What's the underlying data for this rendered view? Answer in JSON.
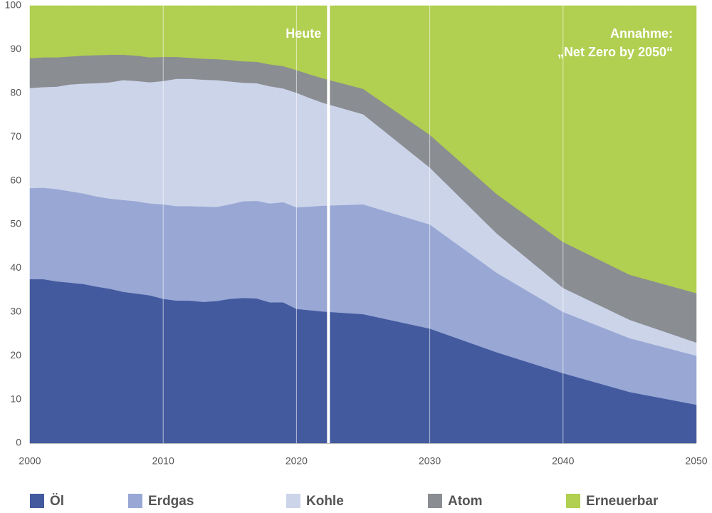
{
  "chart_data": {
    "type": "stacked_area",
    "x": [
      2000,
      2001,
      2002,
      2003,
      2004,
      2005,
      2006,
      2007,
      2008,
      2009,
      2010,
      2011,
      2012,
      2013,
      2014,
      2015,
      2016,
      2017,
      2018,
      2019,
      2020,
      2021,
      2022,
      2025,
      2030,
      2035,
      2040,
      2045,
      2050
    ],
    "series": [
      {
        "name": "Öl",
        "color": "#435a9f",
        "values": [
          37.5,
          37.5,
          37,
          36.7,
          36.4,
          35.8,
          35.3,
          34.6,
          34.2,
          33.8,
          33,
          32.6,
          32.6,
          32.3,
          32.5,
          33,
          33.2,
          33.1,
          32.2,
          32.2,
          30.7,
          30.4,
          30.1,
          29.5,
          26.2,
          20.8,
          16,
          11.7,
          8.8
        ]
      },
      {
        "name": "Erdgas",
        "color": "#98a7d4",
        "values": [
          20.8,
          20.9,
          21.1,
          20.9,
          20.7,
          20.6,
          20.6,
          21,
          21.1,
          21,
          21.6,
          21.6,
          21.6,
          21.8,
          21.5,
          21.6,
          22.1,
          22.3,
          22.6,
          22.9,
          23.2,
          23.7,
          24.2,
          25.1,
          23.8,
          18.2,
          14,
          12.3,
          11.2
        ]
      },
      {
        "name": "Kohle",
        "color": "#ccd4ea",
        "values": [
          22.9,
          23,
          23.4,
          24.4,
          25.1,
          25.9,
          26.6,
          27.4,
          27.5,
          27.7,
          28.2,
          29.1,
          29.1,
          29,
          29,
          28.1,
          27.1,
          26.9,
          26.8,
          26,
          26.2,
          24.8,
          23.5,
          20.6,
          13,
          9,
          5.5,
          4.2,
          3
        ]
      },
      {
        "name": "Atom",
        "color": "#8a8d91",
        "values": [
          6.8,
          6.8,
          6.7,
          6.4,
          6.4,
          6.4,
          6.3,
          5.8,
          5.8,
          5.7,
          5.5,
          5,
          4.8,
          4.8,
          4.8,
          4.9,
          4.9,
          4.9,
          5,
          5.1,
          5.2,
          5.4,
          5.6,
          5.8,
          7.5,
          9,
          10.5,
          10.3,
          11.3
        ]
      },
      {
        "name": "Erneuerbar",
        "color": "#b1cf51",
        "values": [
          12,
          11.8,
          11.8,
          11.6,
          11.4,
          11.3,
          11.2,
          11.2,
          11.4,
          11.8,
          11.7,
          11.7,
          11.9,
          12.1,
          12.2,
          12.4,
          12.7,
          12.8,
          13.4,
          13.8,
          14.7,
          15.7,
          16.6,
          19,
          29.5,
          43,
          54,
          61.5,
          65.7
        ]
      }
    ],
    "xlim": [
      2000,
      2050
    ],
    "xticks": [
      2000,
      2010,
      2020,
      2030,
      2040,
      2050
    ],
    "ylim": [
      0,
      100
    ],
    "yticks": [
      0,
      10,
      20,
      30,
      40,
      50,
      60,
      70,
      80,
      90,
      100
    ],
    "grid": true,
    "legend": "bottom",
    "annotations": [
      {
        "text": [
          "Heute"
        ],
        "x": 2022.4
      },
      {
        "text": [
          "Annahme:",
          "„Net  Zero by 2050“"
        ]
      }
    ]
  }
}
